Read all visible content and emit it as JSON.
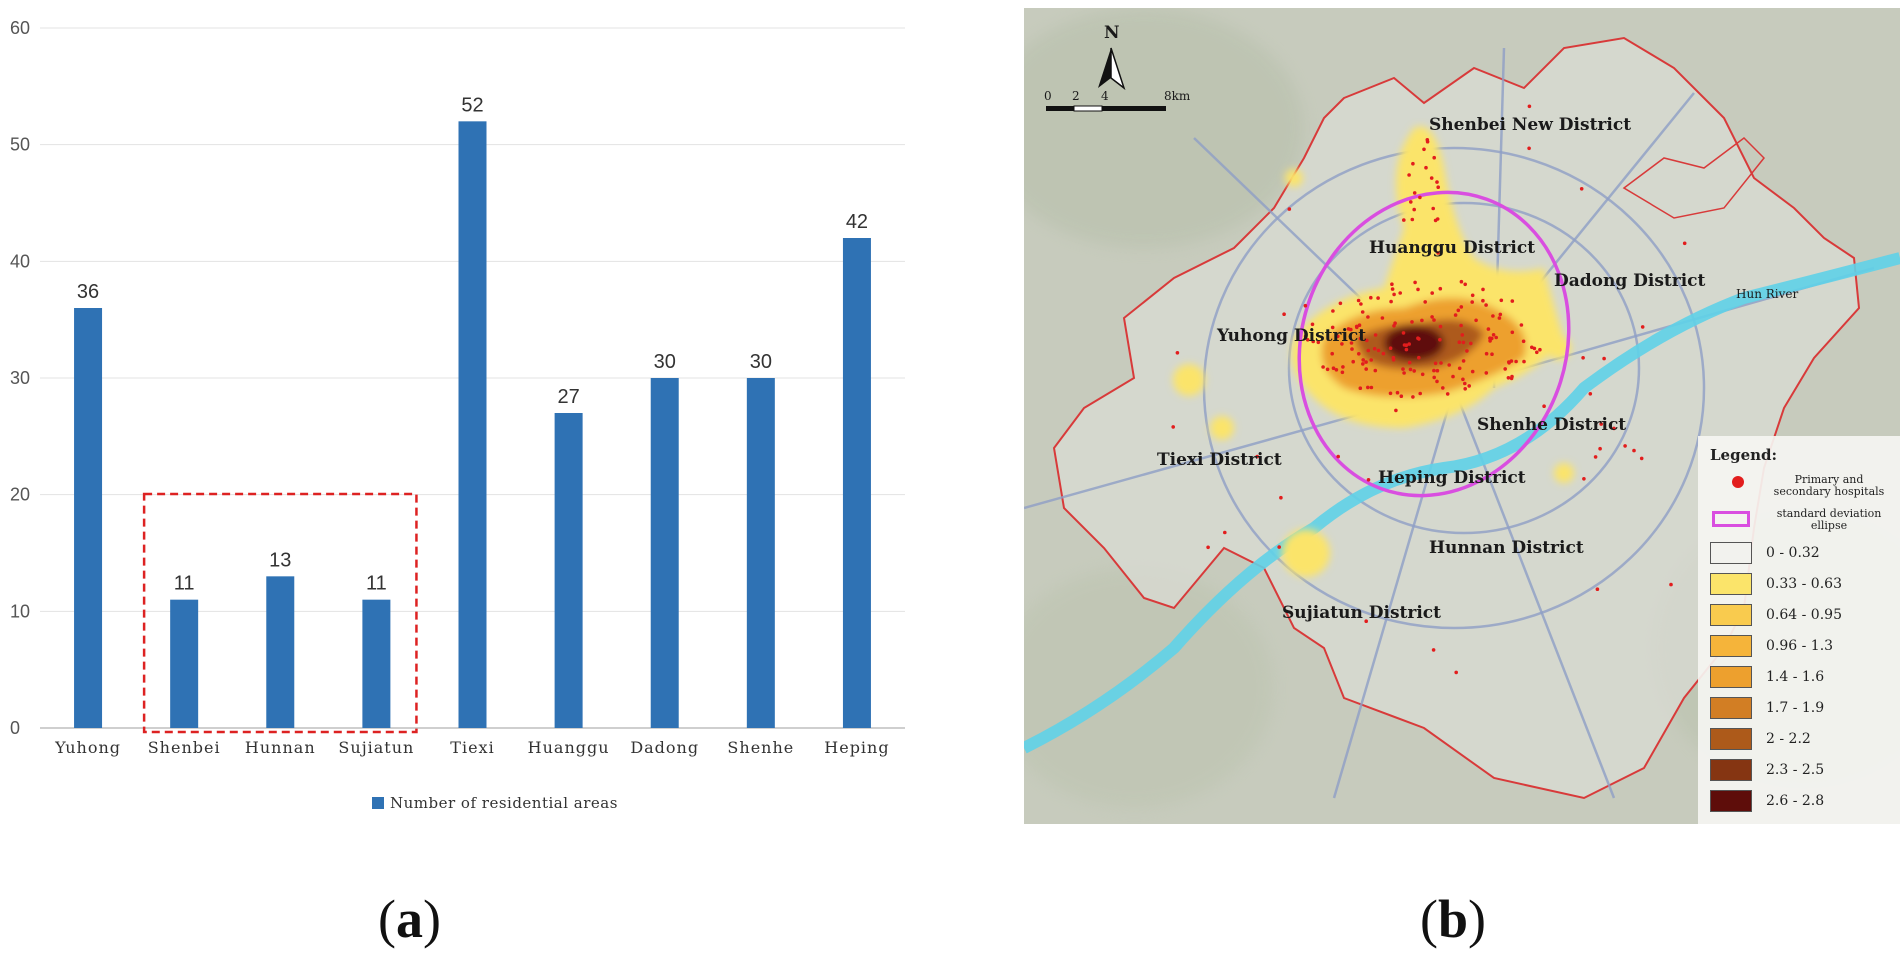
{
  "chart_data": {
    "type": "bar",
    "categories": [
      "Yuhong",
      "Shenbei",
      "Hunnan",
      "Sujiatun",
      "Tiexi",
      "Huanggu",
      "Dadong",
      "Shenhe",
      "Heping"
    ],
    "series": [
      {
        "name": "Number of residential areas",
        "values": [
          36,
          11,
          13,
          11,
          52,
          27,
          30,
          30,
          42
        ],
        "color": "#2f72b4"
      }
    ],
    "ylim": [
      0,
      60
    ],
    "yticks": [
      0,
      10,
      20,
      30,
      40,
      50,
      60
    ],
    "grid": true,
    "legend_position": "bottom",
    "highlight": {
      "categories": [
        "Shenbei",
        "Hunnan",
        "Sujiatun"
      ],
      "style": "red-dashed-box"
    }
  },
  "captions": {
    "a": "a",
    "b": "b"
  },
  "map": {
    "north": "N",
    "scale": {
      "ticks": [
        "0",
        "2",
        "4"
      ],
      "end": "8km"
    },
    "districts": [
      {
        "id": "shenbei",
        "label": "Shenbei New District"
      },
      {
        "id": "huanggu",
        "label": "Huanggu District"
      },
      {
        "id": "dadong",
        "label": "Dadong District"
      },
      {
        "id": "yuhong",
        "label": "Yuhong District"
      },
      {
        "id": "shenhe",
        "label": "Shenhe District"
      },
      {
        "id": "tiexi",
        "label": "Tiexi District"
      },
      {
        "id": "heping",
        "label": "Heping District"
      },
      {
        "id": "hunnan",
        "label": "Hunnan District"
      },
      {
        "id": "sujiatun",
        "label": "Sujiatun District"
      }
    ],
    "river": "Hun River",
    "legend": {
      "title": "Legend:",
      "hospitals_line1": "Primary and",
      "hospitals_line2": "secondary hospitals",
      "ellipse_line1": "standard deviation",
      "ellipse_line2": "ellipse",
      "classes": [
        {
          "label": "0 - 0.32",
          "color": "#f2f2ee"
        },
        {
          "label": "0.33 - 0.63",
          "color": "#fbe46a"
        },
        {
          "label": "0.64 - 0.95",
          "color": "#f9cb4e"
        },
        {
          "label": "0.96 - 1.3",
          "color": "#f5b43a"
        },
        {
          "label": "1.4 - 1.6",
          "color": "#eda02e"
        },
        {
          "label": "1.7 - 1.9",
          "color": "#d27e24"
        },
        {
          "label": "2 - 2.2",
          "color": "#ad5a1a"
        },
        {
          "label": "2.3 - 2.5",
          "color": "#853512"
        },
        {
          "label": "2.6 - 2.8",
          "color": "#5e0d0a"
        }
      ]
    }
  }
}
